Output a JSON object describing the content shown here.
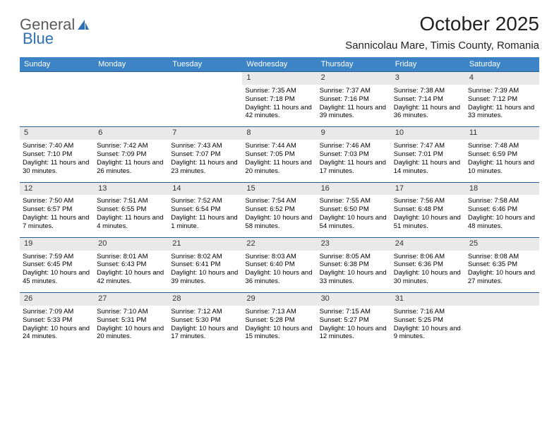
{
  "logo": {
    "part1": "General",
    "part2": "Blue"
  },
  "title": "October 2025",
  "location": "Sannicolau Mare, Timis County, Romania",
  "colors": {
    "headerBar": "#3d84c6",
    "rule": "#2c5f91",
    "dayBg": "#e9e9e9",
    "text": "#000000"
  },
  "dayHeaders": [
    "Sunday",
    "Monday",
    "Tuesday",
    "Wednesday",
    "Thursday",
    "Friday",
    "Saturday"
  ],
  "weeks": [
    [
      null,
      null,
      null,
      {
        "d": "1",
        "sr": "Sunrise: 7:35 AM",
        "ss": "Sunset: 7:18 PM",
        "dl": "Daylight: 11 hours and 42 minutes."
      },
      {
        "d": "2",
        "sr": "Sunrise: 7:37 AM",
        "ss": "Sunset: 7:16 PM",
        "dl": "Daylight: 11 hours and 39 minutes."
      },
      {
        "d": "3",
        "sr": "Sunrise: 7:38 AM",
        "ss": "Sunset: 7:14 PM",
        "dl": "Daylight: 11 hours and 36 minutes."
      },
      {
        "d": "4",
        "sr": "Sunrise: 7:39 AM",
        "ss": "Sunset: 7:12 PM",
        "dl": "Daylight: 11 hours and 33 minutes."
      }
    ],
    [
      {
        "d": "5",
        "sr": "Sunrise: 7:40 AM",
        "ss": "Sunset: 7:10 PM",
        "dl": "Daylight: 11 hours and 30 minutes."
      },
      {
        "d": "6",
        "sr": "Sunrise: 7:42 AM",
        "ss": "Sunset: 7:09 PM",
        "dl": "Daylight: 11 hours and 26 minutes."
      },
      {
        "d": "7",
        "sr": "Sunrise: 7:43 AM",
        "ss": "Sunset: 7:07 PM",
        "dl": "Daylight: 11 hours and 23 minutes."
      },
      {
        "d": "8",
        "sr": "Sunrise: 7:44 AM",
        "ss": "Sunset: 7:05 PM",
        "dl": "Daylight: 11 hours and 20 minutes."
      },
      {
        "d": "9",
        "sr": "Sunrise: 7:46 AM",
        "ss": "Sunset: 7:03 PM",
        "dl": "Daylight: 11 hours and 17 minutes."
      },
      {
        "d": "10",
        "sr": "Sunrise: 7:47 AM",
        "ss": "Sunset: 7:01 PM",
        "dl": "Daylight: 11 hours and 14 minutes."
      },
      {
        "d": "11",
        "sr": "Sunrise: 7:48 AM",
        "ss": "Sunset: 6:59 PM",
        "dl": "Daylight: 11 hours and 10 minutes."
      }
    ],
    [
      {
        "d": "12",
        "sr": "Sunrise: 7:50 AM",
        "ss": "Sunset: 6:57 PM",
        "dl": "Daylight: 11 hours and 7 minutes."
      },
      {
        "d": "13",
        "sr": "Sunrise: 7:51 AM",
        "ss": "Sunset: 6:55 PM",
        "dl": "Daylight: 11 hours and 4 minutes."
      },
      {
        "d": "14",
        "sr": "Sunrise: 7:52 AM",
        "ss": "Sunset: 6:54 PM",
        "dl": "Daylight: 11 hours and 1 minute."
      },
      {
        "d": "15",
        "sr": "Sunrise: 7:54 AM",
        "ss": "Sunset: 6:52 PM",
        "dl": "Daylight: 10 hours and 58 minutes."
      },
      {
        "d": "16",
        "sr": "Sunrise: 7:55 AM",
        "ss": "Sunset: 6:50 PM",
        "dl": "Daylight: 10 hours and 54 minutes."
      },
      {
        "d": "17",
        "sr": "Sunrise: 7:56 AM",
        "ss": "Sunset: 6:48 PM",
        "dl": "Daylight: 10 hours and 51 minutes."
      },
      {
        "d": "18",
        "sr": "Sunrise: 7:58 AM",
        "ss": "Sunset: 6:46 PM",
        "dl": "Daylight: 10 hours and 48 minutes."
      }
    ],
    [
      {
        "d": "19",
        "sr": "Sunrise: 7:59 AM",
        "ss": "Sunset: 6:45 PM",
        "dl": "Daylight: 10 hours and 45 minutes."
      },
      {
        "d": "20",
        "sr": "Sunrise: 8:01 AM",
        "ss": "Sunset: 6:43 PM",
        "dl": "Daylight: 10 hours and 42 minutes."
      },
      {
        "d": "21",
        "sr": "Sunrise: 8:02 AM",
        "ss": "Sunset: 6:41 PM",
        "dl": "Daylight: 10 hours and 39 minutes."
      },
      {
        "d": "22",
        "sr": "Sunrise: 8:03 AM",
        "ss": "Sunset: 6:40 PM",
        "dl": "Daylight: 10 hours and 36 minutes."
      },
      {
        "d": "23",
        "sr": "Sunrise: 8:05 AM",
        "ss": "Sunset: 6:38 PM",
        "dl": "Daylight: 10 hours and 33 minutes."
      },
      {
        "d": "24",
        "sr": "Sunrise: 8:06 AM",
        "ss": "Sunset: 6:36 PM",
        "dl": "Daylight: 10 hours and 30 minutes."
      },
      {
        "d": "25",
        "sr": "Sunrise: 8:08 AM",
        "ss": "Sunset: 6:35 PM",
        "dl": "Daylight: 10 hours and 27 minutes."
      }
    ],
    [
      {
        "d": "26",
        "sr": "Sunrise: 7:09 AM",
        "ss": "Sunset: 5:33 PM",
        "dl": "Daylight: 10 hours and 24 minutes."
      },
      {
        "d": "27",
        "sr": "Sunrise: 7:10 AM",
        "ss": "Sunset: 5:31 PM",
        "dl": "Daylight: 10 hours and 20 minutes."
      },
      {
        "d": "28",
        "sr": "Sunrise: 7:12 AM",
        "ss": "Sunset: 5:30 PM",
        "dl": "Daylight: 10 hours and 17 minutes."
      },
      {
        "d": "29",
        "sr": "Sunrise: 7:13 AM",
        "ss": "Sunset: 5:28 PM",
        "dl": "Daylight: 10 hours and 15 minutes."
      },
      {
        "d": "30",
        "sr": "Sunrise: 7:15 AM",
        "ss": "Sunset: 5:27 PM",
        "dl": "Daylight: 10 hours and 12 minutes."
      },
      {
        "d": "31",
        "sr": "Sunrise: 7:16 AM",
        "ss": "Sunset: 5:25 PM",
        "dl": "Daylight: 10 hours and 9 minutes."
      },
      null
    ]
  ]
}
